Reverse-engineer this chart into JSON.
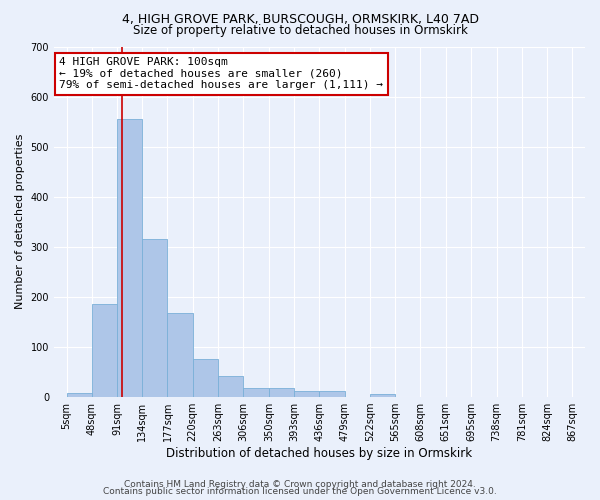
{
  "title1": "4, HIGH GROVE PARK, BURSCOUGH, ORMSKIRK, L40 7AD",
  "title2": "Size of property relative to detached houses in Ormskirk",
  "xlabel": "Distribution of detached houses by size in Ormskirk",
  "ylabel": "Number of detached properties",
  "bar_edges": [
    5,
    48,
    91,
    134,
    177,
    220,
    263,
    306,
    350,
    393,
    436,
    479,
    522,
    565,
    608,
    651,
    695,
    738,
    781,
    824,
    867
  ],
  "bar_heights": [
    8,
    185,
    555,
    315,
    167,
    77,
    42,
    18,
    18,
    12,
    12,
    0,
    7,
    0,
    0,
    0,
    0,
    0,
    0,
    0
  ],
  "bar_color": "#aec6e8",
  "bar_edge_color": "#7ab0d8",
  "red_line_x": 100,
  "red_line_color": "#cc0000",
  "annotation_line1": "4 HIGH GROVE PARK: 100sqm",
  "annotation_line2": "← 19% of detached houses are smaller (260)",
  "annotation_line3": "79% of semi-detached houses are larger (1,111) →",
  "annotation_box_color": "#ffffff",
  "annotation_border_color": "#cc0000",
  "ylim": [
    0,
    700
  ],
  "yticks": [
    0,
    100,
    200,
    300,
    400,
    500,
    600,
    700
  ],
  "x_tick_labels": [
    "5sqm",
    "48sqm",
    "91sqm",
    "134sqm",
    "177sqm",
    "220sqm",
    "263sqm",
    "306sqm",
    "350sqm",
    "393sqm",
    "436sqm",
    "479sqm",
    "522sqm",
    "565sqm",
    "608sqm",
    "651sqm",
    "695sqm",
    "738sqm",
    "781sqm",
    "824sqm",
    "867sqm"
  ],
  "bg_color": "#eaf0fb",
  "footer1": "Contains HM Land Registry data © Crown copyright and database right 2024.",
  "footer2": "Contains public sector information licensed under the Open Government Licence v3.0.",
  "title1_fontsize": 9,
  "title2_fontsize": 8.5,
  "xlabel_fontsize": 8.5,
  "ylabel_fontsize": 8,
  "tick_fontsize": 7,
  "annotation_fontsize": 8,
  "footer_fontsize": 6.5
}
